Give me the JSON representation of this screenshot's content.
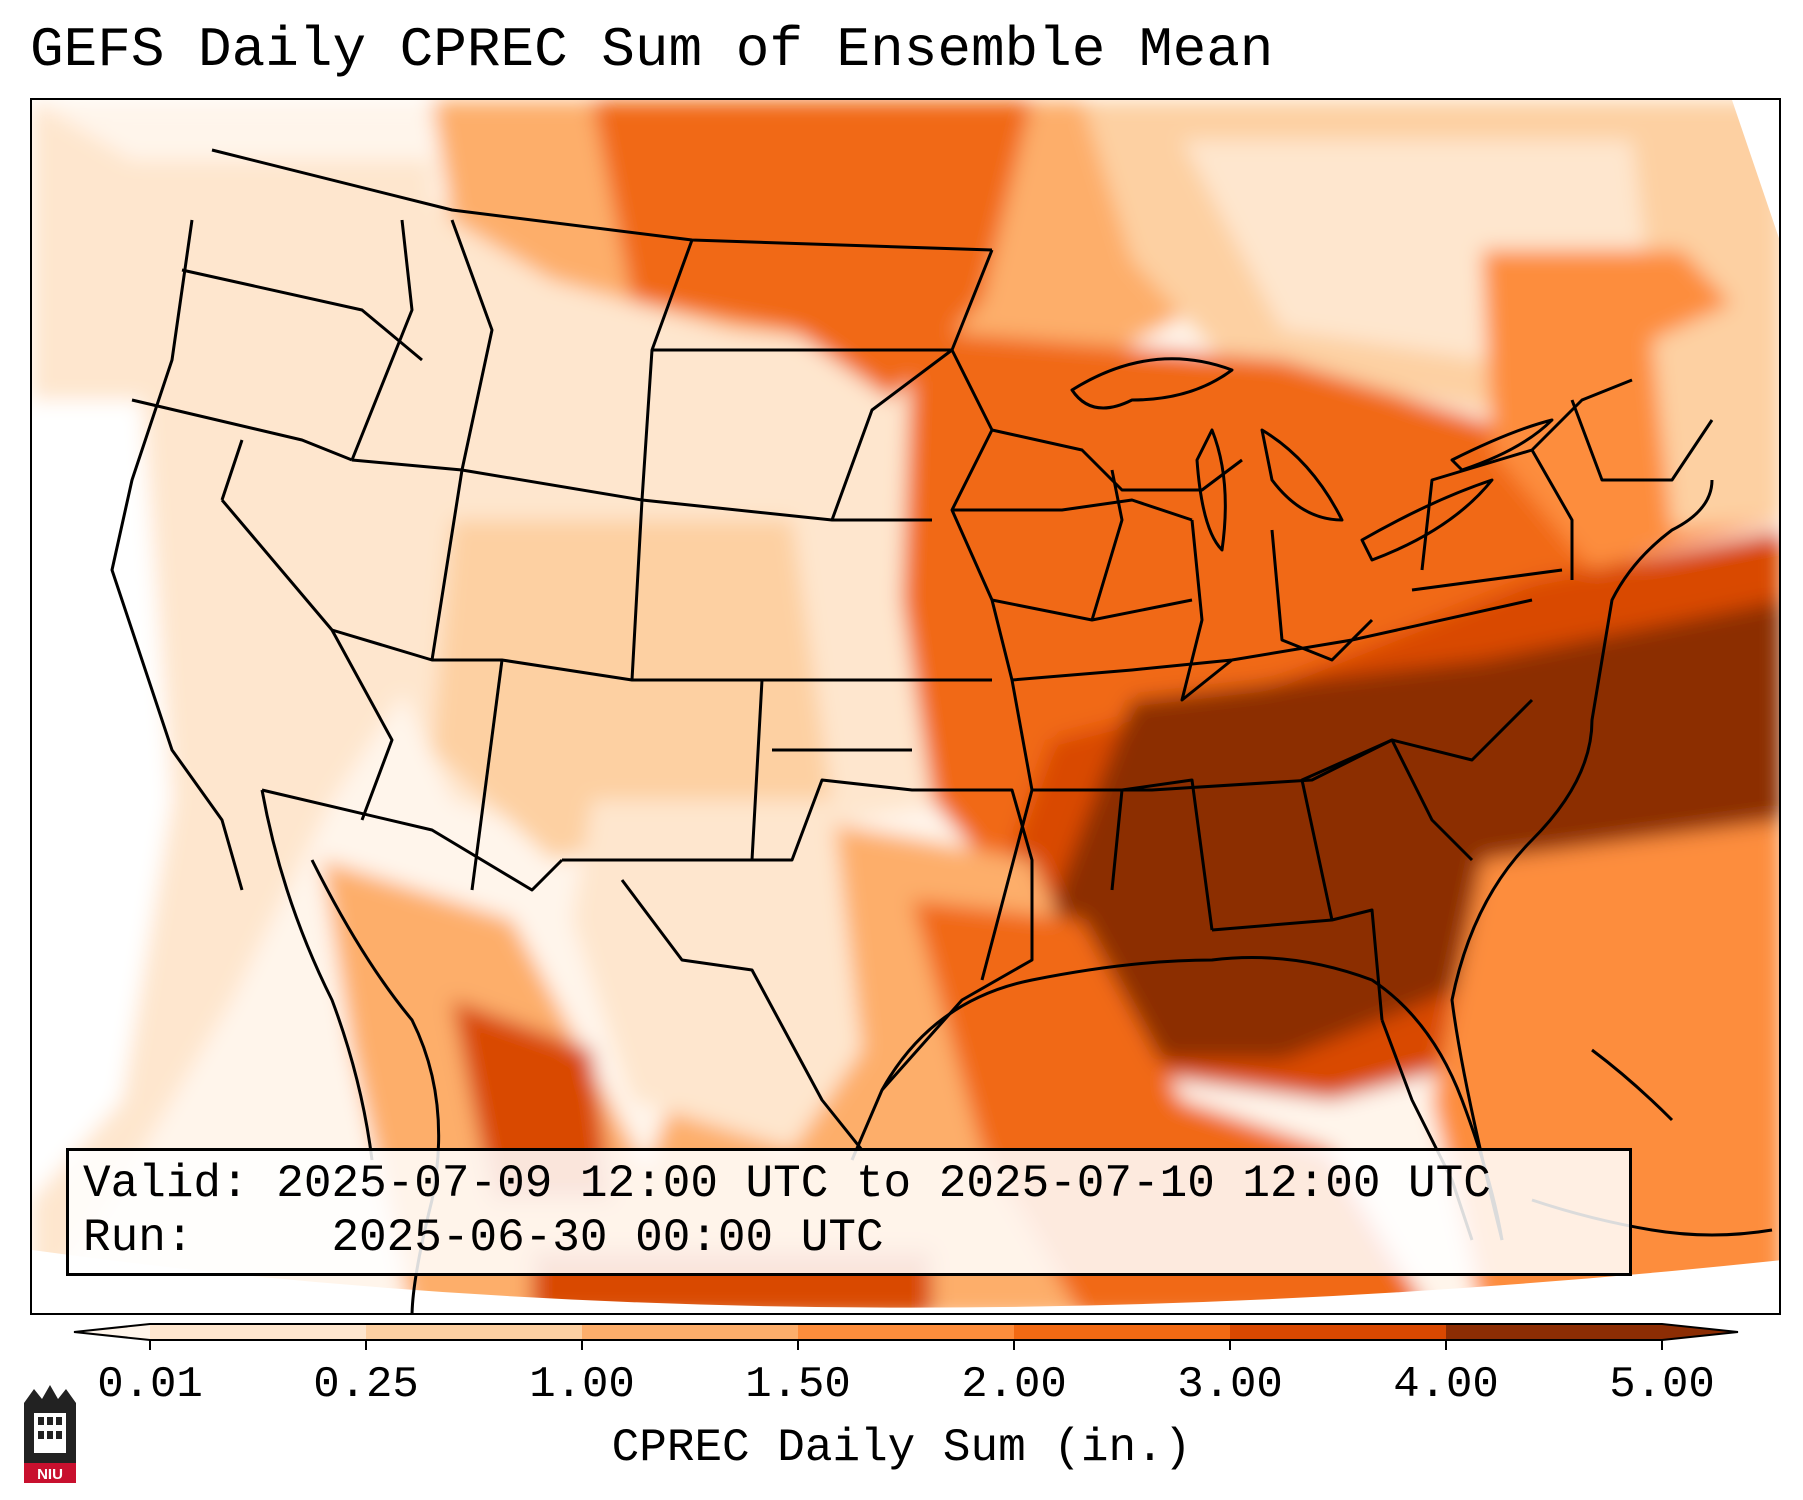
{
  "title": "GEFS Daily CPREC Sum of Ensemble Mean",
  "info": {
    "valid_label": "Valid:",
    "valid_value": "2025-07-09 12:00 UTC to 2025-07-10 12:00 UTC",
    "run_label": "Run:",
    "run_value": "2025-06-30 00:00 UTC"
  },
  "colorbar": {
    "label": "CPREC Daily Sum (in.)",
    "ticks": [
      "0.01",
      "0.25",
      "1.00",
      "1.50",
      "2.00",
      "3.00",
      "4.00",
      "5.00"
    ],
    "colors": [
      "#fff5eb",
      "#fee6ce",
      "#fdd0a2",
      "#fdae6b",
      "#fd8d3c",
      "#f16913",
      "#d94801",
      "#8c2d04"
    ],
    "extend": "both"
  },
  "logo": {
    "text": "NIU",
    "icon": "niu-logo-icon"
  }
}
